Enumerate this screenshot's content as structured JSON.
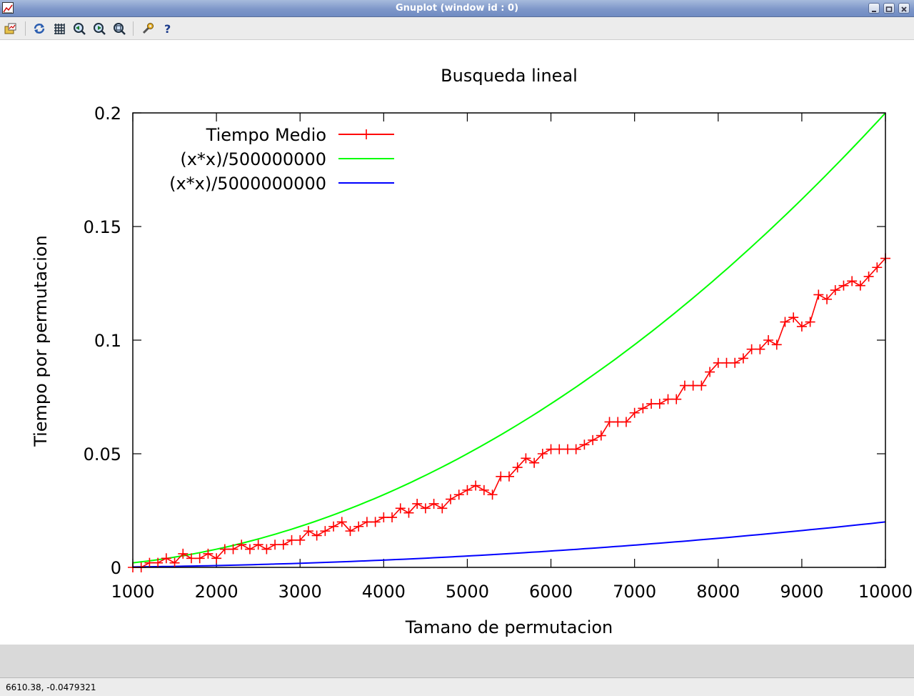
{
  "window": {
    "title": "Gnuplot (window id : 0)"
  },
  "toolbar": {
    "icons": [
      "export-icon",
      "replot-icon",
      "grid-icon",
      "zoom-previous-icon",
      "zoom-next-icon",
      "unzoom-icon",
      "options-icon",
      "help-icon"
    ],
    "colors": {
      "blue": "#2a5db0",
      "dark": "#203040"
    }
  },
  "status": {
    "coordinates": "6610.38, -0.0479321"
  },
  "chart_data": {
    "type": "line",
    "title": "Busqueda lineal",
    "xlabel": "Tamano de permutacion",
    "ylabel": "Tiempo por permutacion",
    "xlim": [
      1000,
      10000
    ],
    "ylim": [
      0,
      0.2
    ],
    "xticks": [
      1000,
      2000,
      3000,
      4000,
      5000,
      6000,
      7000,
      8000,
      9000,
      10000
    ],
    "yticks": [
      0,
      0.05,
      0.1,
      0.15,
      0.2
    ],
    "xtick_labels": [
      "1000",
      "2000",
      "3000",
      "4000",
      "5000",
      "6000",
      "7000",
      "8000",
      "9000",
      "10000"
    ],
    "ytick_labels": [
      "0",
      "0.05",
      "0.1",
      "0.15",
      "0.2"
    ],
    "legend_position": "top-left",
    "grid": false,
    "series": [
      {
        "name": "Tiempo Medio",
        "color": "#ff0000",
        "marker": "plus",
        "x": [
          1000,
          1100,
          1200,
          1300,
          1400,
          1500,
          1600,
          1700,
          1800,
          1900,
          2000,
          2100,
          2200,
          2300,
          2400,
          2500,
          2600,
          2700,
          2800,
          2900,
          3000,
          3100,
          3200,
          3300,
          3400,
          3500,
          3600,
          3700,
          3800,
          3900,
          4000,
          4100,
          4200,
          4300,
          4400,
          4500,
          4600,
          4700,
          4800,
          4900,
          5000,
          5100,
          5200,
          5300,
          5400,
          5500,
          5600,
          5700,
          5800,
          5900,
          6000,
          6100,
          6200,
          6300,
          6400,
          6500,
          6600,
          6700,
          6800,
          6900,
          7000,
          7100,
          7200,
          7300,
          7400,
          7500,
          7600,
          7700,
          7800,
          7900,
          8000,
          8100,
          8200,
          8300,
          8400,
          8500,
          8600,
          8700,
          8800,
          8900,
          9000,
          9100,
          9200,
          9300,
          9400,
          9500,
          9600,
          9700,
          9800,
          9900,
          10000
        ],
        "y": [
          0.0,
          0.0,
          0.002,
          0.002,
          0.004,
          0.002,
          0.006,
          0.004,
          0.004,
          0.006,
          0.004,
          0.008,
          0.008,
          0.01,
          0.008,
          0.01,
          0.008,
          0.01,
          0.01,
          0.012,
          0.012,
          0.016,
          0.014,
          0.016,
          0.018,
          0.02,
          0.016,
          0.018,
          0.02,
          0.02,
          0.022,
          0.022,
          0.026,
          0.024,
          0.028,
          0.026,
          0.028,
          0.026,
          0.03,
          0.032,
          0.034,
          0.036,
          0.034,
          0.032,
          0.04,
          0.04,
          0.044,
          0.048,
          0.046,
          0.05,
          0.052,
          0.052,
          0.052,
          0.052,
          0.054,
          0.056,
          0.058,
          0.064,
          0.064,
          0.064,
          0.068,
          0.07,
          0.072,
          0.072,
          0.074,
          0.074,
          0.08,
          0.08,
          0.08,
          0.086,
          0.09,
          0.09,
          0.09,
          0.092,
          0.096,
          0.096,
          0.1,
          0.098,
          0.108,
          0.11,
          0.106,
          0.108,
          0.12,
          0.118,
          0.122,
          0.124,
          0.126,
          0.124,
          0.128,
          0.132,
          0.136
        ]
      },
      {
        "name": "(x*x)/500000000",
        "color": "#00ff00",
        "function": "x*x/500000000"
      },
      {
        "name": "(x*x)/5000000000",
        "color": "#0000ff",
        "function": "x*x/5000000000"
      }
    ]
  }
}
